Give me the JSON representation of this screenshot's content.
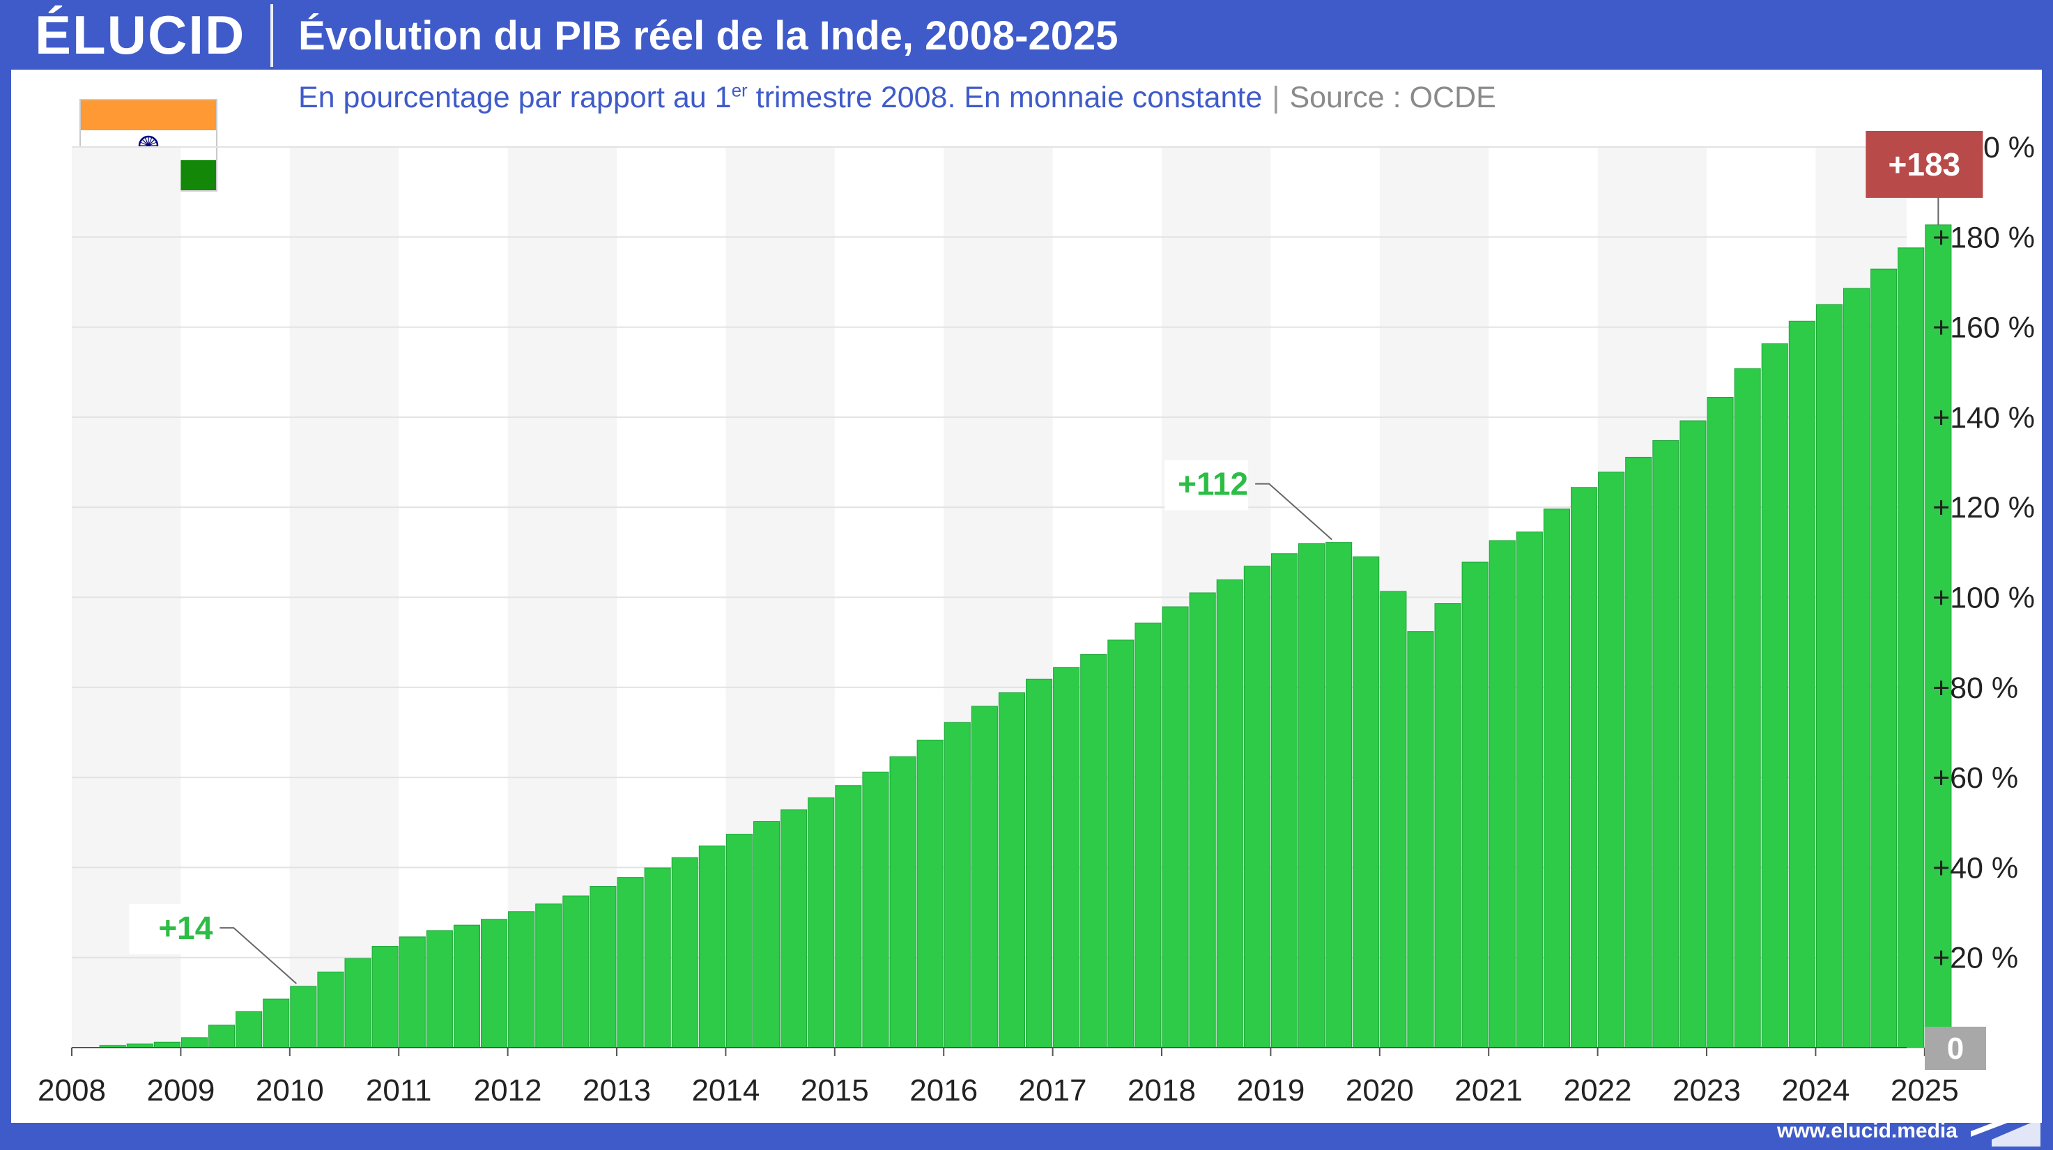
{
  "header": {
    "logo": "ÉLUCID",
    "title": "Évolution du PIB réel de la Inde, 2008-2025"
  },
  "subtitle": {
    "main": "En pourcentage par rapport au 1",
    "sup": "er",
    "rest": " trimestre 2008. En monnaie constante",
    "separator": "|",
    "source": "Source : OCDE"
  },
  "flag": {
    "icon": "india-flag-icon",
    "colors": [
      "#ff9933",
      "#ffffff",
      "#138808"
    ],
    "chakra_color": "#000080"
  },
  "footer": {
    "url": "www.elucid.media",
    "mark_icon": "elucid-mark-icon"
  },
  "colors": {
    "bar": "#2dcb48",
    "bar_edge": "#1ea53a",
    "annotation_green": "#2dbd47",
    "highlight": "#b94a4a",
    "zero_label_bg": "#a8a8a8",
    "band": "#f5f5f5",
    "brand": "#3f5bc9"
  },
  "chart_data": {
    "type": "bar",
    "x_unit": "quarter",
    "x_ticks": [
      "2008",
      "2009",
      "2010",
      "2011",
      "2012",
      "2013",
      "2014",
      "2015",
      "2016",
      "2017",
      "2018",
      "2019",
      "2020",
      "2021",
      "2022",
      "2023",
      "2024",
      "2025"
    ],
    "y_ticks": [
      {
        "value": 0,
        "label": "0"
      },
      {
        "value": 20,
        "label": "+20 %"
      },
      {
        "value": 40,
        "label": "+40 %"
      },
      {
        "value": 60,
        "label": "+60 %"
      },
      {
        "value": 80,
        "label": "+80 %"
      },
      {
        "value": 100,
        "label": "+100 %"
      },
      {
        "value": 120,
        "label": "+120 %"
      },
      {
        "value": 140,
        "label": "+140 %"
      },
      {
        "value": 160,
        "label": "+160 %"
      },
      {
        "value": 180,
        "label": "+180 %"
      },
      {
        "value": 200,
        "label": "+200 %"
      }
    ],
    "ylim": [
      0,
      200
    ],
    "y_axis_position": "right",
    "alternating_year_bands": true,
    "start": "2008-Q1",
    "values": [
      0,
      0.5,
      0.8,
      1.2,
      2.2,
      5,
      8,
      10.8,
      13.6,
      16.8,
      19.8,
      22.5,
      24.6,
      26,
      27.2,
      28.5,
      30.2,
      31.9,
      33.7,
      35.8,
      37.8,
      39.9,
      42.2,
      44.8,
      47.4,
      50.2,
      52.8,
      55.5,
      58.2,
      61.2,
      64.6,
      68.3,
      72.2,
      75.8,
      78.8,
      81.8,
      84.4,
      87.3,
      90.5,
      94.3,
      97.9,
      101,
      103.9,
      106.9,
      109.7,
      111.9,
      112.2,
      109,
      101.3,
      92.4,
      98.6,
      107.8,
      112.6,
      114.5,
      119.6,
      124.4,
      127.8,
      131.1,
      134.8,
      139.2,
      144.4,
      150.8,
      156.3,
      161.3,
      165,
      168.6,
      172.9,
      177.6,
      182.7
    ],
    "annotations": [
      {
        "label": "+14",
        "index": 8,
        "style": "green"
      },
      {
        "label": "+112",
        "index": 46,
        "style": "green"
      },
      {
        "label": "+183",
        "index": 68,
        "style": "highlight"
      }
    ],
    "zero_label": "0"
  }
}
